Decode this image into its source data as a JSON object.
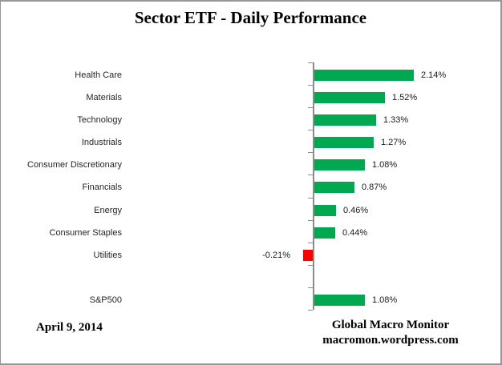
{
  "title": "Sector ETF - Daily Performance",
  "chart_data": {
    "type": "bar",
    "orientation": "horizontal",
    "title": "Sector ETF - Daily Performance",
    "xlabel": "",
    "ylabel": "",
    "value_unit": "percent",
    "grid": false,
    "legend": false,
    "axis_zero_line": true,
    "categories": [
      "Health Care",
      "Materials",
      "Technology",
      "Industrials",
      "Consumer Discretionary",
      "Financials",
      "Energy",
      "Consumer Staples",
      "Utilities",
      "S&P500"
    ],
    "values": [
      2.14,
      1.52,
      1.33,
      1.27,
      1.08,
      0.87,
      0.46,
      0.44,
      -0.21,
      1.08
    ],
    "rows": [
      {
        "category": "Health Care",
        "value": 2.14,
        "label": "2.14%",
        "gap_before": false
      },
      {
        "category": "Materials",
        "value": 1.52,
        "label": "1.52%",
        "gap_before": false
      },
      {
        "category": "Technology",
        "value": 1.33,
        "label": "1.33%",
        "gap_before": false
      },
      {
        "category": "Industrials",
        "value": 1.27,
        "label": "1.27%",
        "gap_before": false
      },
      {
        "category": "Consumer Discretionary",
        "value": 1.08,
        "label": "1.08%",
        "gap_before": false
      },
      {
        "category": "Financials",
        "value": 0.87,
        "label": "0.87%",
        "gap_before": false
      },
      {
        "category": "Energy",
        "value": 0.46,
        "label": "0.46%",
        "gap_before": false
      },
      {
        "category": "Consumer Staples",
        "value": 0.44,
        "label": "0.44%",
        "gap_before": false
      },
      {
        "category": "Utilities",
        "value": -0.21,
        "label": "-0.21%",
        "gap_before": false
      },
      {
        "category": "S&P500",
        "value": 1.08,
        "label": "1.08%",
        "gap_before": true
      }
    ]
  },
  "footer": {
    "date": "April 9, 2014",
    "source_name": "Global Macro Monitor",
    "source_url": "macromon.wordpress.com"
  },
  "colors": {
    "positive_bar": "#00A850",
    "negative_bar": "#FF0000",
    "axis": "#8C8C8C",
    "label_text": "#262626",
    "title_text": "#000000",
    "background": "#FFFFFF",
    "frame_border": "#979797"
  }
}
